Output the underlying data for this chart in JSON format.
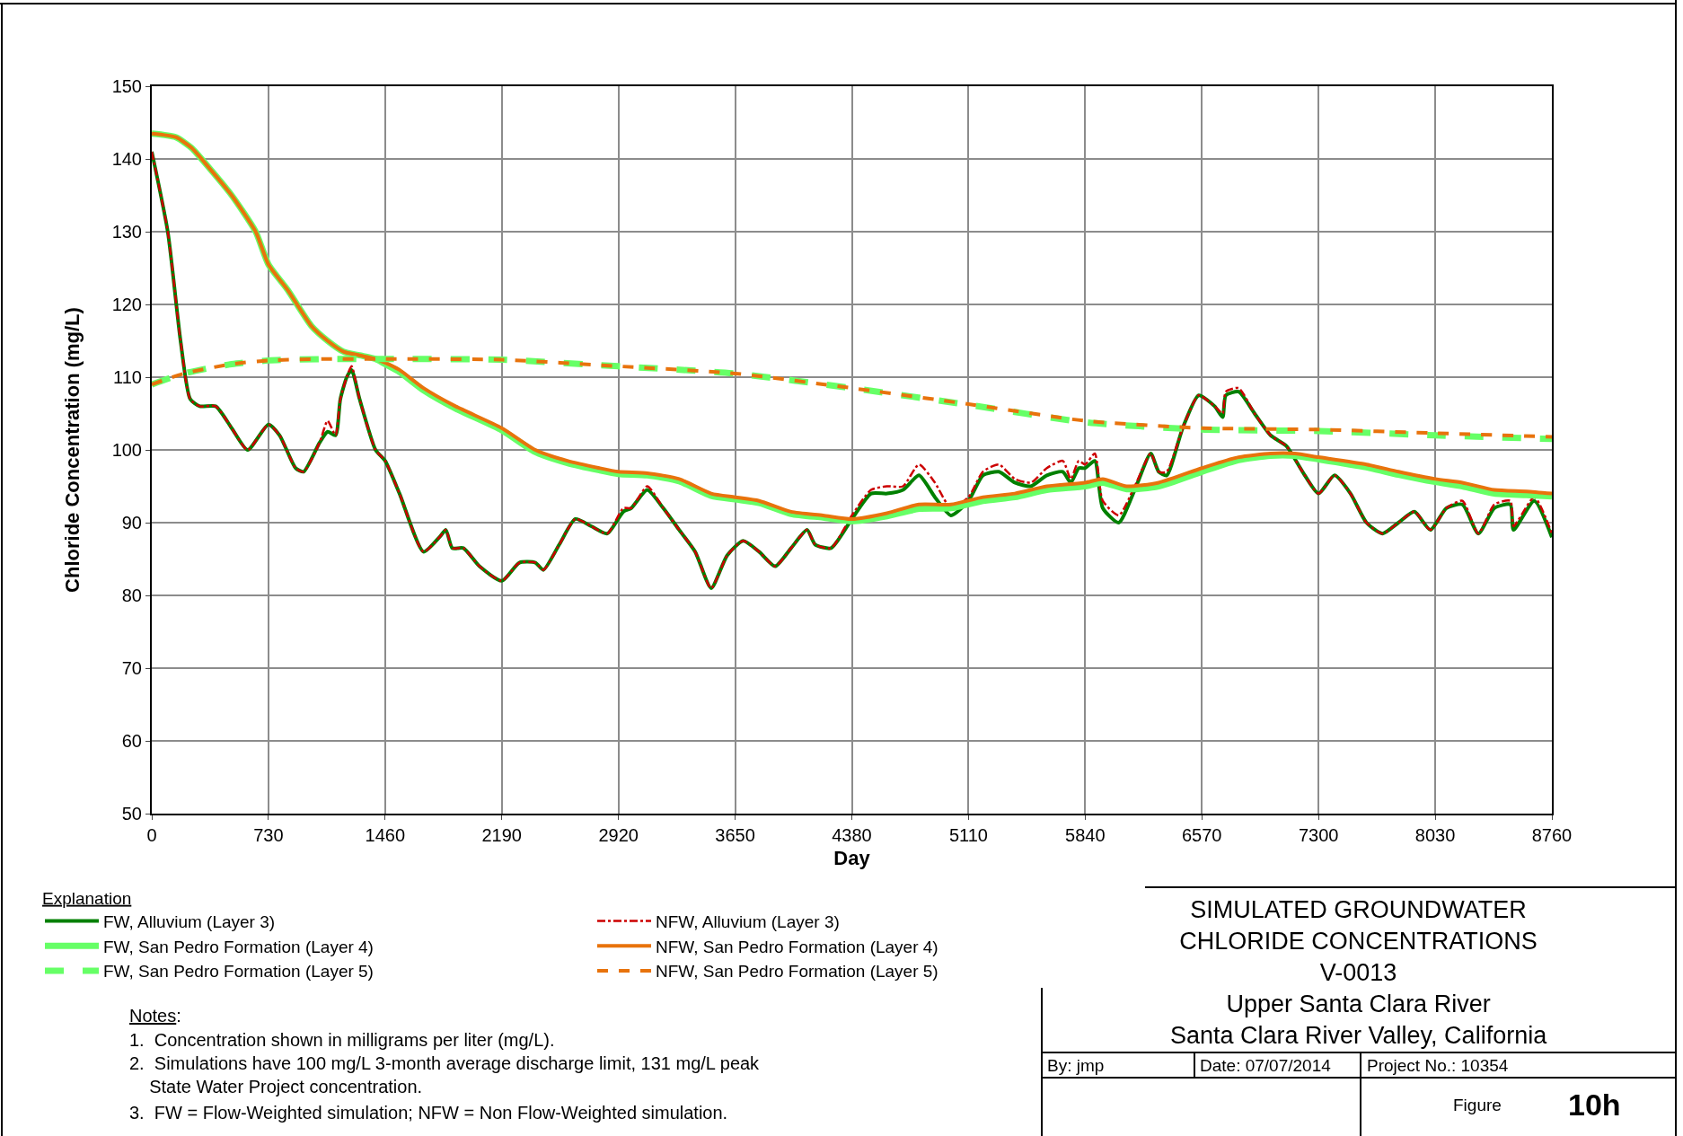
{
  "chart_data": {
    "type": "line",
    "title": "SIMULATED GROUNDWATER\nCHLORIDE CONCENTRATIONS",
    "subtitle": "V-0013\nUpper Santa Clara River\nSanta Clara River Valley, California",
    "xlabel": "Day",
    "ylabel": "Chloride Concentration (mg/L)",
    "legend_title": "Explanation",
    "legend": "bottom left",
    "grid": true,
    "marker": "none",
    "xlim": [
      0,
      8760
    ],
    "xticks": [
      0,
      730,
      1460,
      2190,
      2920,
      3650,
      4380,
      5110,
      5840,
      6570,
      7300,
      8030,
      8760
    ],
    "ylim": [
      50,
      150
    ],
    "yticks": [
      50,
      60,
      70,
      80,
      90,
      100,
      110,
      120,
      130,
      140,
      150
    ],
    "series": [
      {
        "name": "FW, Alluvium (Layer 3)",
        "color": "#008000",
        "line_style": "solid",
        "x": [
          0,
          100,
          180,
          240,
          300,
          400,
          500,
          600,
          730,
          800,
          900,
          950,
          1050,
          1100,
          1150,
          1180,
          1220,
          1250,
          1300,
          1400,
          1460,
          1550,
          1700,
          1800,
          1840,
          1880,
          1950,
          2050,
          2190,
          2300,
          2400,
          2450,
          2550,
          2650,
          2750,
          2850,
          2950,
          3000,
          3100,
          3200,
          3300,
          3400,
          3500,
          3600,
          3700,
          3800,
          3900,
          4000,
          4100,
          4150,
          4250,
          4380,
          4500,
          4600,
          4700,
          4800,
          4900,
          5000,
          5110,
          5200,
          5300,
          5400,
          5500,
          5600,
          5700,
          5750,
          5800,
          5840,
          5900,
          5950,
          6050,
          6150,
          6250,
          6300,
          6350,
          6450,
          6550,
          6650,
          6700,
          6720,
          6800,
          6900,
          7000,
          7100,
          7200,
          7300,
          7400,
          7500,
          7600,
          7700,
          7800,
          7900,
          8000,
          8100,
          8200,
          8300,
          8400,
          8500,
          8520,
          8650,
          8760
        ],
        "values": [
          141,
          130,
          115,
          107,
          106,
          106,
          103,
          100,
          103.5,
          102,
          97.5,
          97,
          101,
          102.5,
          102,
          107,
          110,
          111,
          107,
          100,
          98.5,
          94,
          86,
          88,
          89,
          86.5,
          86.5,
          84,
          82,
          84.5,
          84.5,
          83.5,
          87,
          90.5,
          89.5,
          88.5,
          91.5,
          92,
          94.5,
          92,
          89,
          86,
          81,
          85.5,
          87.5,
          86,
          84,
          86.5,
          89,
          87,
          86.5,
          90.5,
          94,
          94,
          94.5,
          96.5,
          93.5,
          91,
          93,
          96.5,
          97,
          95.5,
          95,
          96.5,
          97,
          95.5,
          97.5,
          97.5,
          98.5,
          92,
          90,
          94.5,
          99.5,
          97,
          96.5,
          103,
          107.5,
          106,
          104.5,
          107.5,
          108,
          105,
          102,
          100.5,
          97,
          94,
          96.5,
          94,
          90,
          88.5,
          90,
          91.5,
          89,
          92,
          92.5,
          88.5,
          92,
          92.5,
          89,
          93,
          88
        ]
      },
      {
        "name": "NFW, Alluvium (Layer 3)",
        "color": "#cc0000",
        "line_style": "dashdot",
        "x": [
          0,
          100,
          180,
          240,
          300,
          400,
          500,
          600,
          730,
          800,
          900,
          950,
          1050,
          1100,
          1150,
          1180,
          1220,
          1250,
          1300,
          1400,
          1460,
          1550,
          1700,
          1800,
          1840,
          1880,
          1950,
          2050,
          2190,
          2300,
          2400,
          2450,
          2550,
          2650,
          2750,
          2850,
          2950,
          3000,
          3100,
          3200,
          3300,
          3400,
          3500,
          3600,
          3700,
          3800,
          3900,
          4000,
          4100,
          4150,
          4250,
          4380,
          4500,
          4600,
          4700,
          4800,
          4900,
          5000,
          5110,
          5200,
          5300,
          5400,
          5500,
          5600,
          5700,
          5750,
          5800,
          5840,
          5900,
          5950,
          6050,
          6150,
          6250,
          6300,
          6350,
          6450,
          6550,
          6650,
          6700,
          6720,
          6800,
          6900,
          7000,
          7100,
          7200,
          7300,
          7400,
          7500,
          7600,
          7700,
          7800,
          7900,
          8000,
          8100,
          8200,
          8300,
          8400,
          8500,
          8520,
          8650,
          8760
        ],
        "values": [
          141,
          130,
          115,
          107,
          106,
          106,
          103,
          100,
          103.5,
          102,
          97.5,
          97,
          101,
          104,
          102,
          107,
          110,
          111.5,
          107,
          100,
          98.5,
          94,
          86,
          88,
          89,
          86.5,
          86.5,
          84,
          82,
          84.5,
          84.5,
          83.5,
          87,
          90.5,
          89.5,
          88.5,
          92,
          92,
          95,
          92,
          89,
          86,
          81,
          85.5,
          87.5,
          86,
          84,
          86.5,
          89,
          87,
          86.5,
          91,
          94.5,
          95,
          95,
          98,
          95.5,
          92,
          93.5,
          97,
          98,
          96,
          95.5,
          97.5,
          98.5,
          96,
          98.5,
          98,
          99.5,
          93,
          91,
          95,
          99.5,
          97,
          97,
          103,
          107.5,
          106,
          105,
          108,
          108.5,
          105,
          102,
          100.5,
          97,
          94,
          96.5,
          94,
          90,
          88.5,
          90,
          91.5,
          89,
          92,
          93,
          88.5,
          92.5,
          93,
          89.5,
          93.5,
          88.5
        ]
      },
      {
        "name": "FW, San Pedro Formation (Layer 4)",
        "color": "#66ff66",
        "line_style": "solid",
        "x": [
          0,
          150,
          250,
          350,
          500,
          650,
          730,
          850,
          1000,
          1100,
          1200,
          1300,
          1400,
          1460,
          1550,
          1700,
          1900,
          2190,
          2400,
          2600,
          2800,
          2920,
          3100,
          3300,
          3500,
          3650,
          3800,
          4000,
          4200,
          4380,
          4600,
          4800,
          5000,
          5200,
          5400,
          5600,
          5840,
          5950,
          6100,
          6300,
          6570,
          6800,
          7000,
          7150,
          7300,
          7600,
          7800,
          8030,
          8200,
          8400,
          8600,
          8760
        ],
        "values": [
          143.5,
          143,
          141.5,
          139,
          135,
          130,
          125.5,
          122,
          117,
          115,
          113.5,
          113,
          112.5,
          111.8,
          110.7,
          108.2,
          105.7,
          102.7,
          99.7,
          98.2,
          97.2,
          96.7,
          96.5,
          95.7,
          93.7,
          93.2,
          92.7,
          91.2,
          90.7,
          90.2,
          90.9,
          91.9,
          92,
          93,
          93.5,
          94.5,
          95,
          95.5,
          94.6,
          95,
          97,
          98.6,
          99.2,
          99.2,
          98.7,
          97.6,
          96.6,
          95.6,
          95,
          94,
          93.8,
          93.6
        ]
      },
      {
        "name": "NFW, San Pedro Formation (Layer 4)",
        "color": "#e8730c",
        "line_style": "solid",
        "x": [
          0,
          150,
          250,
          350,
          500,
          650,
          730,
          850,
          1000,
          1100,
          1200,
          1300,
          1400,
          1460,
          1550,
          1700,
          1900,
          2190,
          2400,
          2600,
          2800,
          2920,
          3100,
          3300,
          3500,
          3650,
          3800,
          4000,
          4200,
          4380,
          4600,
          4800,
          5000,
          5200,
          5400,
          5600,
          5840,
          5950,
          6100,
          6300,
          6570,
          6800,
          7000,
          7150,
          7300,
          7600,
          7800,
          8030,
          8200,
          8400,
          8600,
          8760
        ],
        "values": [
          143.5,
          143,
          141.5,
          139,
          135,
          130,
          125.5,
          122,
          117,
          115,
          113.5,
          113,
          112.5,
          112,
          111,
          108.5,
          106,
          103,
          100,
          98.5,
          97.5,
          97,
          96.8,
          96,
          94,
          93.5,
          93,
          91.5,
          91,
          90.5,
          91.3,
          92.5,
          92.5,
          93.5,
          94,
          95,
          95.5,
          96,
          95,
          95.5,
          97.5,
          99,
          99.5,
          99.5,
          99,
          98,
          97,
          96,
          95.5,
          94.5,
          94.3,
          94
        ]
      },
      {
        "name": "FW, San Pedro Formation (Layer 5)",
        "color": "#66ff66",
        "line_style": "dashed",
        "x": [
          0,
          200,
          500,
          730,
          1095,
          1460,
          2190,
          2920,
          3650,
          4380,
          5110,
          5840,
          6570,
          7300,
          8030,
          8760
        ],
        "values": [
          109,
          110.5,
          111.8,
          112.3,
          112.5,
          112.5,
          112.4,
          111.5,
          110.5,
          108.5,
          106.2,
          103.8,
          102.8,
          102.6,
          102,
          101.5
        ]
      },
      {
        "name": "NFW, San Pedro Formation (Layer 5)",
        "color": "#e8730c",
        "line_style": "dashed",
        "x": [
          0,
          200,
          500,
          730,
          1095,
          1460,
          2190,
          2920,
          3650,
          4380,
          5110,
          5840,
          6570,
          7300,
          8030,
          8760
        ],
        "values": [
          109,
          110.5,
          111.8,
          112.3,
          112.5,
          112.5,
          112.4,
          111.5,
          110.5,
          108.5,
          106.3,
          104,
          103,
          102.8,
          102.3,
          101.8
        ]
      }
    ],
    "annotations": [
      "Notes:",
      "1.  Concentration shown in milligrams per liter (mg/L).",
      "2.  Simulations have 100 mg/L 3-month average discharge limit, 131 mg/L peak\nState Water Project concentration.",
      "3.  FW = Flow-Weighted simulation; NFW = Non Flow-Weighted simulation.",
      "By: jmp",
      "Date: 07/07/2014",
      "Project No.: 10354",
      "Figure",
      "10h"
    ]
  }
}
